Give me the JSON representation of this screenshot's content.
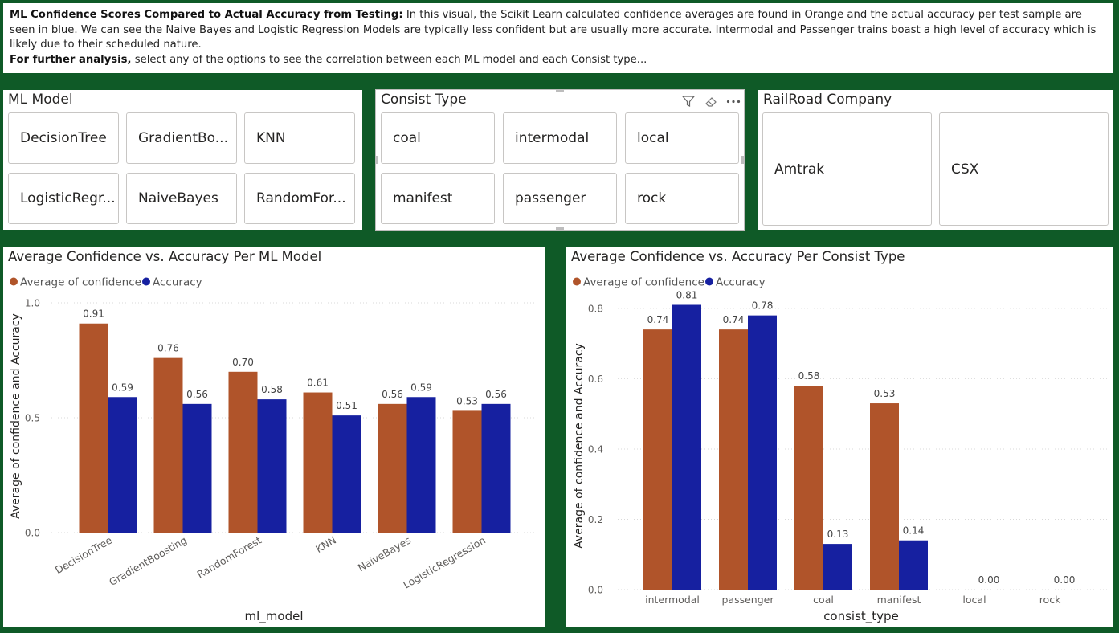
{
  "intro": {
    "title_bold": "ML Confidence Scores Compared to Actual Accuracy from Testing:",
    "body": " In this visual, the Scikit Learn calculated confidence averages are found in Orange and the actual accuracy per test sample are seen in blue. We can see the Naive Bayes and Logistic Regression Models are typically less confident but are usually more accurate. Intermodal and Passenger trains boast a high level of accuracy which is likely due to their scheduled nature.",
    "further_bold": "For further analysis,",
    "further_body": " select any of the options to see the correlation between each ML model and each Consist type..."
  },
  "slicers": {
    "ml_model": {
      "title": "ML Model",
      "items": [
        "DecisionTree",
        "GradientBo...",
        "KNN",
        "LogisticRegr...",
        "NaiveBayes",
        "RandomFor..."
      ]
    },
    "consist": {
      "title": "Consist Type",
      "items": [
        "coal",
        "intermodal",
        "local",
        "manifest",
        "passenger",
        "rock"
      ]
    },
    "railroad": {
      "title": "RailRoad Company",
      "items": [
        "Amtrak",
        "CSX"
      ]
    }
  },
  "colors": {
    "confidence": "#b0542a",
    "accuracy": "#1620a0"
  },
  "chart_data": [
    {
      "type": "bar",
      "title": "Average Confidence vs. Accuracy Per ML Model",
      "xlabel": "ml_model",
      "ylabel": "Average of confidence and Accuracy",
      "ylim": [
        0,
        1.0
      ],
      "yticks": [
        "0.0",
        "0.5",
        "1.0"
      ],
      "legend_position": "top-left",
      "grid": true,
      "categories": [
        "DecisionTree",
        "GradientBoosting",
        "RandomForest",
        "KNN",
        "NaiveBayes",
        "LogisticRegression"
      ],
      "series": [
        {
          "name": "Average of confidence",
          "values": [
            0.91,
            0.76,
            0.7,
            0.61,
            0.56,
            0.53
          ],
          "labels": [
            "0.91",
            "0.76",
            "0.70",
            "0.61",
            "0.56",
            "0.53"
          ]
        },
        {
          "name": "Accuracy",
          "values": [
            0.59,
            0.56,
            0.58,
            0.51,
            0.59,
            0.56
          ],
          "labels": [
            "0.59",
            "0.56",
            "0.58",
            "0.51",
            "0.59",
            "0.56"
          ]
        }
      ]
    },
    {
      "type": "bar",
      "title": "Average Confidence vs. Accuracy Per Consist Type",
      "xlabel": "consist_type",
      "ylabel": "Average of confidence and Accuracy",
      "ylim": [
        0,
        0.85
      ],
      "yticks": [
        "0.0",
        "0.2",
        "0.4",
        "0.6",
        "0.8"
      ],
      "legend_position": "top-left",
      "grid": true,
      "categories": [
        "intermodal",
        "passenger",
        "coal",
        "manifest",
        "local",
        "rock"
      ],
      "series": [
        {
          "name": "Average of confidence",
          "values": [
            0.74,
            0.74,
            0.58,
            0.53,
            null,
            null
          ],
          "labels": [
            "0.74",
            "0.74",
            "0.58",
            "0.53",
            "",
            ""
          ]
        },
        {
          "name": "Accuracy",
          "values": [
            0.81,
            0.78,
            0.13,
            0.14,
            0.0,
            0.0
          ],
          "labels": [
            "0.81",
            "0.78",
            "0.13",
            "0.14",
            "0.00",
            "0.00"
          ]
        }
      ]
    }
  ]
}
